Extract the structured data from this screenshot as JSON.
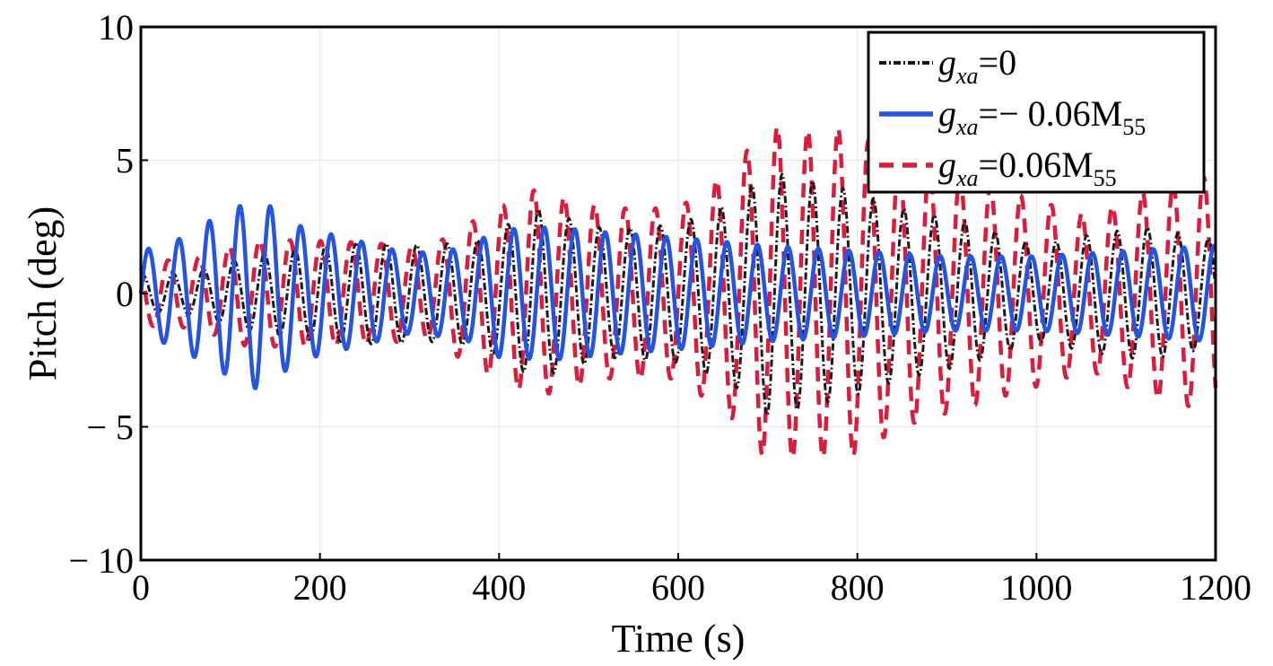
{
  "chart_data": {
    "type": "line",
    "title": "",
    "xlabel": "Time (s)",
    "ylabel": "Pitch (deg)",
    "xlim": [
      0,
      1200
    ],
    "ylim": [
      -10,
      10
    ],
    "xticks": [
      0,
      200,
      400,
      600,
      800,
      1000,
      1200
    ],
    "yticks": [
      -10,
      -5,
      0,
      5,
      10
    ],
    "xtick_labels": [
      "0",
      "200",
      "400",
      "600",
      "800",
      "1000",
      "1200"
    ],
    "ytick_labels": [
      "− 10",
      "− 5",
      "0",
      "5",
      "10"
    ],
    "grid": true,
    "legend_position": "top-right",
    "period_s": 34,
    "series": [
      {
        "name": "g_xa=0",
        "legend": {
          "base": "g",
          "sub": "xa",
          "rest": "=0",
          "tail_sub": ""
        },
        "color": "#1a1a1a",
        "style": "dashdot",
        "envelope": {
          "t": [
            0,
            60,
            120,
            180,
            260,
            320,
            380,
            440,
            520,
            600,
            660,
            700,
            740,
            790,
            850,
            920,
            1000,
            1060,
            1120,
            1200
          ],
          "amp": [
            0.7,
            0.8,
            1.4,
            1.7,
            1.9,
            1.8,
            2.0,
            3.2,
            2.4,
            2.6,
            3.4,
            4.6,
            4.3,
            3.9,
            3.2,
            2.7,
            1.8,
            2.2,
            2.5,
            2.0
          ]
        },
        "phase": 1.2
      },
      {
        "name": "g_xa=− 0.06M_55",
        "legend": {
          "base": "g",
          "sub": "xa",
          "rest": "=− 0.06M",
          "tail_sub": "55"
        },
        "color": "#2454e0",
        "style": "solid",
        "envelope": {
          "t": [
            0,
            40,
            80,
            130,
            180,
            240,
            300,
            360,
            400,
            460,
            520,
            600,
            700,
            800,
            900,
            1000,
            1100,
            1200
          ],
          "amp": [
            1.6,
            2.0,
            2.8,
            3.6,
            2.5,
            2.0,
            1.5,
            1.7,
            2.4,
            2.5,
            2.3,
            2.1,
            1.8,
            1.6,
            1.4,
            1.4,
            1.6,
            1.8
          ]
        },
        "phase": 0.0
      },
      {
        "name": "g_xa=0.06M_55",
        "legend": {
          "base": "g",
          "sub": "xa",
          "rest": "=0.06M",
          "tail_sub": "55"
        },
        "color": "#dc1c3c",
        "style": "dashed",
        "envelope": {
          "t": [
            0,
            60,
            120,
            180,
            260,
            320,
            380,
            440,
            520,
            600,
            660,
            700,
            740,
            790,
            850,
            920,
            980,
            1060,
            1120,
            1200
          ],
          "amp": [
            1.2,
            1.3,
            2.0,
            2.0,
            1.9,
            1.7,
            2.9,
            3.9,
            3.2,
            3.2,
            4.7,
            6.3,
            6.1,
            6.2,
            5.0,
            4.3,
            3.7,
            2.9,
            3.8,
            4.5
          ]
        },
        "phase": 2.2
      }
    ]
  }
}
